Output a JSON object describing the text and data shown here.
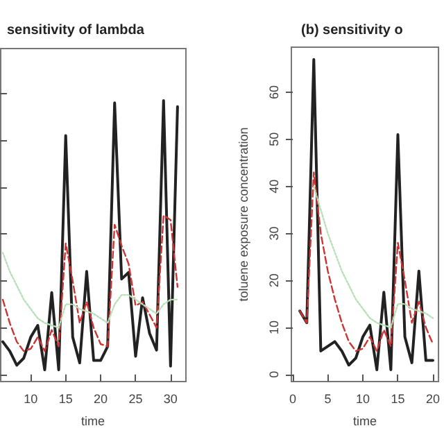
{
  "chart_data": [
    {
      "type": "line",
      "title": "sensitivity of lambda",
      "xlabel": "time",
      "x": [
        6,
        7,
        8,
        9,
        10,
        11,
        12,
        13,
        14,
        15,
        16,
        17,
        18,
        19,
        20,
        21,
        22,
        23,
        24,
        25,
        26,
        27,
        28,
        29,
        30,
        31
      ],
      "xlim": [
        5.6,
        32.2
      ],
      "xticks": [
        10,
        15,
        20,
        25,
        30
      ],
      "ylim": [
        -1.5,
        69.6
      ],
      "yticks": [
        {
          "value": 0,
          "label": null
        },
        {
          "value": 10,
          "label": null
        },
        {
          "value": 20,
          "label": null
        },
        {
          "value": 30,
          "label": null
        },
        {
          "value": 40,
          "label": null
        },
        {
          "value": 50,
          "label": null
        },
        {
          "value": 60,
          "label": null
        }
      ],
      "tick_labels": "x",
      "series": [
        {
          "color": "#222222",
          "line_style": "solid",
          "values": [
            7,
            5,
            2,
            3.5,
            8,
            10.5,
            1,
            17.5,
            1,
            51,
            8,
            2.5,
            22,
            3,
            3,
            6,
            58,
            20.4,
            21.8,
            3.9,
            16.4,
            8.8,
            5.2,
            58.5,
            1.8,
            57.2
          ]
        },
        {
          "color": "#cc3333",
          "line_style": "dashed",
          "values": [
            16,
            11,
            7,
            5,
            5.5,
            8,
            5,
            9.5,
            6,
            28,
            20,
            11,
            15.5,
            10,
            6.5,
            6,
            32,
            27.5,
            23.6,
            14.7,
            15.5,
            12.8,
            10,
            34,
            33,
            18.7
          ]
        },
        {
          "color": "#b8e0b8",
          "line_style": "dotted",
          "values": [
            26,
            22,
            19,
            16,
            14,
            12,
            11,
            10.5,
            10,
            15,
            15,
            14,
            13.5,
            13,
            12,
            11,
            15,
            17,
            17,
            16,
            15,
            14,
            13,
            15,
            16,
            16
          ]
        }
      ]
    },
    {
      "type": "line",
      "title": "(b) sensitivity o",
      "xlabel": "time",
      "ylabel": "toluene exposure concentration",
      "x": [
        1,
        2,
        3,
        4,
        5,
        6,
        7,
        8,
        9,
        10,
        11,
        12,
        13,
        14,
        15,
        16,
        17,
        18,
        19,
        20
      ],
      "xlim": [
        -0.2,
        20.8
      ],
      "xticks": [
        0,
        5,
        10,
        15,
        20
      ],
      "ylim": [
        -1.5,
        69.6
      ],
      "yticks": [
        0,
        10,
        20,
        30,
        40,
        50,
        60
      ],
      "series": [
        {
          "color": "#222222",
          "line_style": "solid",
          "values": [
            13.5,
            11,
            67,
            5,
            6,
            7,
            5,
            2,
            3.5,
            8,
            10.5,
            1,
            17.5,
            1,
            51,
            8,
            2.5,
            22,
            3,
            3
          ]
        },
        {
          "color": "#cc3333",
          "line_style": "dashed",
          "values": [
            13.5,
            11,
            43,
            30,
            22,
            16,
            11,
            7,
            5,
            5.5,
            8,
            5,
            9.5,
            6,
            28,
            20,
            11,
            15.5,
            10,
            6.5
          ]
        },
        {
          "color": "#b8e0b8",
          "line_style": "dotted",
          "values": [
            null,
            null,
            40,
            35,
            30,
            26,
            22,
            19,
            16,
            14,
            12,
            11,
            10.5,
            10,
            15,
            15,
            14,
            13.5,
            13,
            12
          ]
        }
      ]
    }
  ]
}
